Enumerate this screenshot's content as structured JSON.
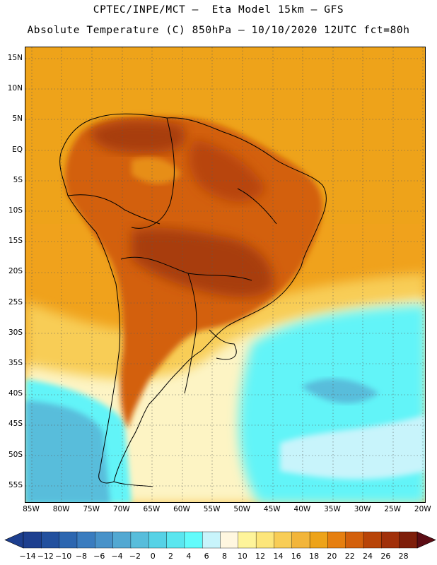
{
  "header": {
    "title_line1": "CPTEC/INPE/MCT –  Eta Model 15km – GFS",
    "title_line2": "Absolute Temperature (C) 850hPa – 10/10/2020 12UTC fct=80h"
  },
  "map": {
    "lat_labels": [
      "15N",
      "10N",
      "5N",
      "EQ",
      "5S",
      "10S",
      "15S",
      "20S",
      "25S",
      "30S",
      "35S",
      "40S",
      "45S",
      "50S",
      "55S"
    ],
    "lon_labels": [
      "85W",
      "80W",
      "75W",
      "70W",
      "65W",
      "60W",
      "55W",
      "50W",
      "45W",
      "40W",
      "35W",
      "30W",
      "25W",
      "20W"
    ],
    "lat_range": [
      -57.5,
      16
    ],
    "lon_range": [
      -86,
      -19.5
    ],
    "gridlines": "dotted"
  },
  "colorbar": {
    "labels": [
      "-14",
      "-12",
      "-10",
      "-8",
      "-6",
      "-4",
      "-2",
      "0",
      "2",
      "4",
      "6",
      "8",
      "10",
      "12",
      "14",
      "16",
      "18",
      "20",
      "22",
      "24",
      "26",
      "28"
    ],
    "colors": [
      "#1d3f8f",
      "#22509e",
      "#2c66b0",
      "#3a7cbf",
      "#4892c9",
      "#52a8d2",
      "#58bddb",
      "#56d2e6",
      "#5ae6ef",
      "#62fbfb",
      "#c8f4fb",
      "#fff7e0",
      "#fef49a",
      "#fde67a",
      "#f8cd56",
      "#f2b53a",
      "#eda319",
      "#e67f10",
      "#d3600c",
      "#b84408",
      "#a1300a",
      "#7e1e0a",
      "#5c0c14"
    ]
  },
  "legend_colors": {
    "ocean_warm": "#f0a21c",
    "land_hot": "#c75a18",
    "land_hottest": "#a83c0e",
    "cold_south": "#62f4f8",
    "pale": "#fdf4c4"
  }
}
